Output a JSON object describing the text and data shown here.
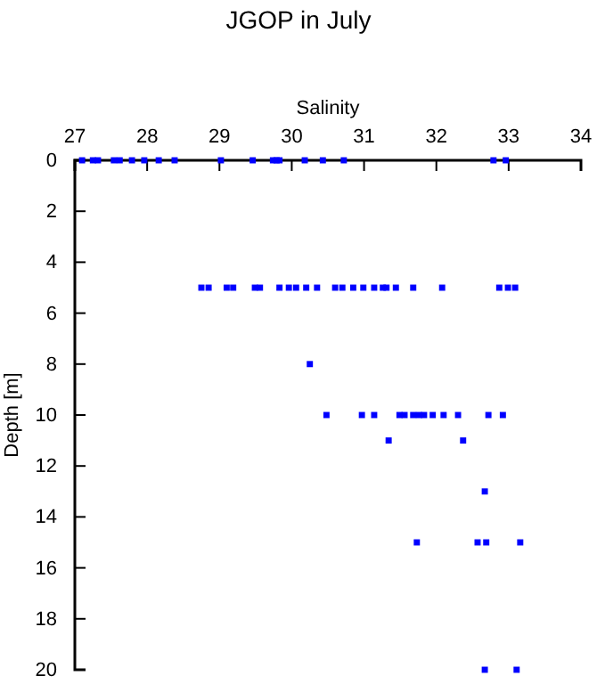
{
  "chart_data": {
    "type": "scatter",
    "title": "JGOP in July",
    "xlabel": "Salinity",
    "ylabel": "Depth [m]",
    "xlim": [
      27,
      34
    ],
    "xticks": [
      27,
      28,
      29,
      30,
      31,
      32,
      33,
      34
    ],
    "ylim": [
      20,
      0
    ],
    "yticks": [
      0,
      2,
      4,
      6,
      8,
      10,
      12,
      14,
      16,
      18,
      20
    ],
    "marker": "square",
    "series": [
      {
        "color": "#0000ff",
        "x": [
          27.1,
          27.25,
          27.32,
          27.54,
          27.62,
          27.79,
          27.96,
          28.16,
          28.38,
          29.02,
          29.46,
          29.74,
          29.79,
          29.83,
          30.18,
          30.43,
          30.72,
          32.79,
          32.96,
          28.75,
          28.85,
          29.1,
          29.19,
          29.49,
          29.56,
          29.83,
          29.96,
          30.06,
          30.2,
          30.35,
          30.6,
          30.7,
          30.85,
          30.99,
          31.14,
          31.26,
          31.31,
          31.44,
          31.68,
          32.08,
          32.87,
          32.99,
          33.09,
          30.25,
          30.48,
          30.97,
          31.14,
          31.49,
          31.56,
          31.68,
          31.76,
          31.83,
          31.95,
          32.1,
          32.3,
          32.72,
          32.92,
          31.34,
          32.37,
          32.67,
          31.73,
          32.57,
          32.69,
          33.16,
          32.67,
          33.11
        ],
        "values": [
          0,
          0,
          0,
          0,
          0,
          0,
          0,
          0,
          0,
          0,
          0,
          0,
          0,
          0,
          0,
          0,
          0,
          0,
          0,
          5,
          5,
          5,
          5,
          5,
          5,
          5,
          5,
          5,
          5,
          5,
          5,
          5,
          5,
          5,
          5,
          5,
          5,
          5,
          5,
          5,
          5,
          5,
          5,
          8,
          10,
          10,
          10,
          10,
          10,
          10,
          10,
          10,
          10,
          10,
          10,
          10,
          10,
          11,
          11,
          13,
          15,
          15,
          15,
          15,
          20,
          20
        ]
      }
    ]
  }
}
